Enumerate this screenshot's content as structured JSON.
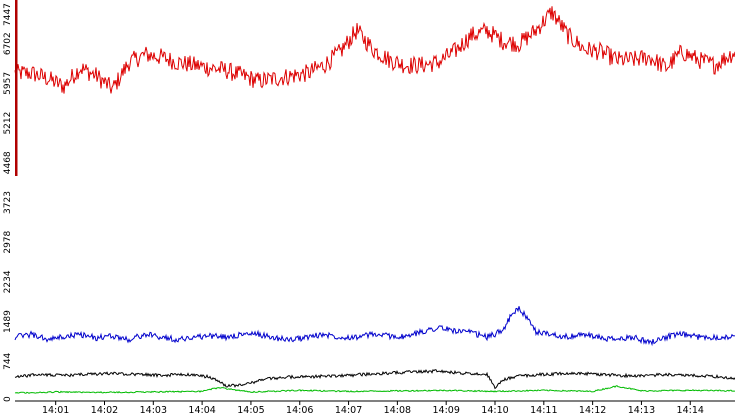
{
  "chart_data": {
    "type": "line",
    "title": "",
    "xlabel": "",
    "ylabel": "",
    "ylim": [
      0,
      7447
    ],
    "yticks": [
      0,
      744,
      1489,
      2234,
      2978,
      3723,
      4468,
      5212,
      5957,
      6702,
      7447
    ],
    "xlim": [
      "14:00:10",
      "14:14:55"
    ],
    "xticks": [
      "14:01",
      "14:02",
      "14:03",
      "14:04",
      "14:05",
      "14:06",
      "14:07",
      "14:08",
      "14:09",
      "14:10",
      "14:11",
      "14:12",
      "14:13",
      "14:14"
    ],
    "grid": false,
    "legend": "none",
    "series": [
      {
        "color": "#dd0000",
        "x": [
          "14:00:10",
          "14:00:30",
          "14:00:50",
          "14:01:10",
          "14:01:30",
          "14:01:50",
          "14:02:10",
          "14:02:30",
          "14:02:50",
          "14:03:10",
          "14:03:30",
          "14:03:50",
          "14:04:10",
          "14:04:30",
          "14:04:50",
          "14:05:10",
          "14:05:30",
          "14:05:50",
          "14:06:10",
          "14:06:30",
          "14:06:50",
          "14:07:10",
          "14:07:30",
          "14:07:50",
          "14:08:10",
          "14:08:30",
          "14:08:50",
          "14:09:10",
          "14:09:30",
          "14:09:50",
          "14:10:10",
          "14:10:30",
          "14:10:50",
          "14:11:10",
          "14:11:30",
          "14:11:50",
          "14:12:10",
          "14:12:30",
          "14:12:50",
          "14:13:10",
          "14:13:30",
          "14:13:50",
          "14:14:10",
          "14:14:30",
          "14:14:55"
        ],
        "values": [
          6150,
          6150,
          6050,
          5900,
          6250,
          6100,
          5850,
          6350,
          6500,
          6450,
          6350,
          6300,
          6250,
          6200,
          6100,
          6000,
          6050,
          6100,
          6150,
          6300,
          6550,
          6950,
          6600,
          6400,
          6300,
          6300,
          6350,
          6550,
          6850,
          6950,
          6750,
          6700,
          6950,
          7300,
          6850,
          6600,
          6550,
          6400,
          6400,
          6450,
          6250,
          6550,
          6400,
          6300,
          6550
        ]
      },
      {
        "color": "#0000cc",
        "x": [
          "14:00:10",
          "14:00:30",
          "14:00:50",
          "14:01:10",
          "14:01:30",
          "14:01:50",
          "14:02:10",
          "14:02:30",
          "14:02:50",
          "14:03:10",
          "14:03:30",
          "14:03:50",
          "14:04:10",
          "14:04:30",
          "14:04:50",
          "14:05:10",
          "14:05:30",
          "14:05:50",
          "14:06:10",
          "14:06:30",
          "14:06:50",
          "14:07:10",
          "14:07:30",
          "14:07:50",
          "14:08:10",
          "14:08:30",
          "14:08:50",
          "14:09:10",
          "14:09:30",
          "14:09:50",
          "14:10:00",
          "14:10:10",
          "14:10:20",
          "14:10:30",
          "14:10:50",
          "14:11:10",
          "14:11:30",
          "14:11:50",
          "14:12:10",
          "14:12:30",
          "14:12:50",
          "14:13:10",
          "14:13:30",
          "14:13:50",
          "14:14:10",
          "14:14:30",
          "14:14:55"
        ],
        "values": [
          1200,
          1250,
          1150,
          1200,
          1250,
          1180,
          1220,
          1150,
          1250,
          1200,
          1150,
          1200,
          1220,
          1200,
          1250,
          1250,
          1180,
          1150,
          1200,
          1250,
          1200,
          1200,
          1250,
          1220,
          1200,
          1300,
          1380,
          1320,
          1280,
          1200,
          1250,
          1350,
          1600,
          1750,
          1300,
          1250,
          1200,
          1250,
          1180,
          1150,
          1200,
          1100,
          1200,
          1250,
          1200,
          1200,
          1200
        ]
      },
      {
        "color": "#000000",
        "x": [
          "14:00:10",
          "14:00:40",
          "14:01:10",
          "14:01:40",
          "14:02:10",
          "14:02:40",
          "14:03:10",
          "14:03:40",
          "14:04:10",
          "14:04:30",
          "14:04:50",
          "14:05:20",
          "14:05:50",
          "14:06:20",
          "14:06:50",
          "14:07:20",
          "14:07:50",
          "14:08:20",
          "14:08:50",
          "14:09:20",
          "14:09:50",
          "14:10:00",
          "14:10:10",
          "14:10:30",
          "14:11:00",
          "14:11:30",
          "14:12:00",
          "14:12:30",
          "14:13:00",
          "14:13:30",
          "14:14:00",
          "14:14:30",
          "14:14:55"
        ],
        "values": [
          450,
          500,
          480,
          500,
          520,
          500,
          480,
          500,
          450,
          280,
          300,
          420,
          450,
          460,
          470,
          500,
          520,
          550,
          560,
          520,
          500,
          250,
          400,
          470,
          500,
          520,
          510,
          480,
          470,
          500,
          480,
          460,
          420
        ]
      },
      {
        "color": "#00bb00",
        "x": [
          "14:00:10",
          "14:01:00",
          "14:02:00",
          "14:03:00",
          "14:04:00",
          "14:04:20",
          "14:05:00",
          "14:06:00",
          "14:07:00",
          "14:08:00",
          "14:09:00",
          "14:10:00",
          "14:11:00",
          "14:12:00",
          "14:12:30",
          "14:13:00",
          "14:14:00",
          "14:14:55"
        ],
        "values": [
          150,
          170,
          160,
          170,
          180,
          250,
          170,
          200,
          180,
          190,
          200,
          180,
          200,
          180,
          280,
          190,
          200,
          190
        ]
      }
    ]
  }
}
